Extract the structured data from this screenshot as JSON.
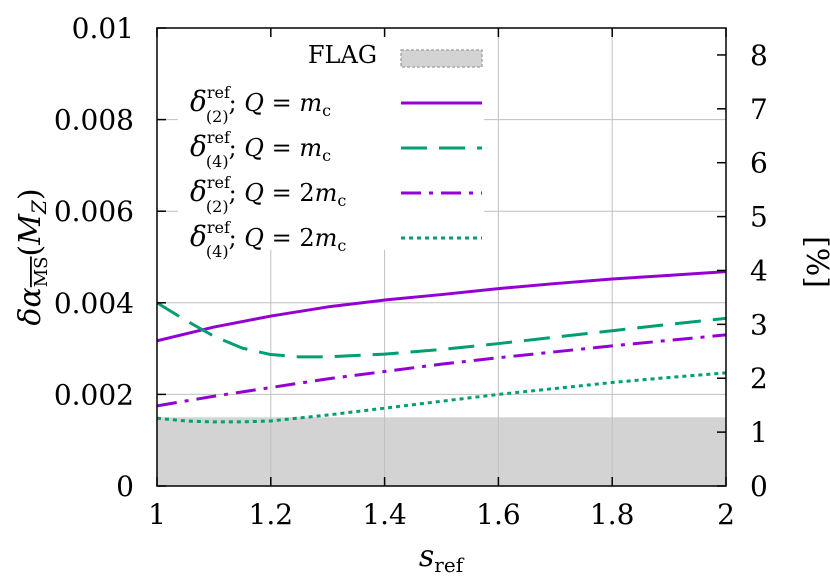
{
  "chart_data": {
    "type": "line",
    "xlabel": "s_ref",
    "ylabel": "δα_MS(M_Z)",
    "y2label": "[%]",
    "xlim": [
      1,
      2
    ],
    "ylim": [
      0,
      0.01
    ],
    "y2lim": [
      0,
      8.5
    ],
    "x_ticks": [
      "1",
      "1.2",
      "1.4",
      "1.6",
      "1.8",
      "2"
    ],
    "y_ticks": [
      "0",
      "0.002",
      "0.004",
      "0.006",
      "0.008",
      "0.01"
    ],
    "y2_ticks": [
      "0",
      "1",
      "2",
      "3",
      "4",
      "5",
      "6",
      "7",
      "8"
    ],
    "grid": true,
    "legend_position": "top-center",
    "flag_band": {
      "name": "FLAG",
      "ymin": 0,
      "ymax": 0.0015,
      "color": "#d3d3d3"
    },
    "series": [
      {
        "legend_text": "δ(2)ref; Q =   mc",
        "color": "#9400d3",
        "dash": "solid",
        "x": [
          1.0,
          1.1,
          1.2,
          1.3,
          1.4,
          1.5,
          1.6,
          1.7,
          1.8,
          1.9,
          2.0
        ],
        "values": [
          0.00317,
          0.00347,
          0.00371,
          0.00391,
          0.00406,
          0.00418,
          0.00431,
          0.00442,
          0.00452,
          0.0046,
          0.00468
        ]
      },
      {
        "legend_text": "δ(4)ref; Q =   mc",
        "color": "#009e73",
        "dash": "long-dash",
        "x": [
          1.0,
          1.05,
          1.1,
          1.15,
          1.2,
          1.25,
          1.3,
          1.4,
          1.5,
          1.6,
          1.7,
          1.8,
          1.9,
          2.0
        ],
        "values": [
          0.004,
          0.00362,
          0.00327,
          0.00301,
          0.00287,
          0.00282,
          0.00282,
          0.00288,
          0.00298,
          0.00311,
          0.00325,
          0.00339,
          0.00353,
          0.00366
        ]
      },
      {
        "legend_text": "δ(2)ref; Q = 2mc",
        "color": "#9400d3",
        "dash": "dash-dot",
        "x": [
          1.0,
          1.1,
          1.2,
          1.3,
          1.4,
          1.5,
          1.6,
          1.7,
          1.8,
          1.9,
          2.0
        ],
        "values": [
          0.00175,
          0.00196,
          0.00215,
          0.00234,
          0.0025,
          0.00266,
          0.0028,
          0.00293,
          0.00306,
          0.00318,
          0.0033
        ]
      },
      {
        "legend_text": "δ(4)ref; Q = 2mc",
        "color": "#009e73",
        "dash": "dotted",
        "x": [
          1.0,
          1.05,
          1.1,
          1.15,
          1.2,
          1.3,
          1.4,
          1.5,
          1.6,
          1.7,
          1.8,
          1.9,
          2.0
        ],
        "values": [
          0.00148,
          0.00142,
          0.0014,
          0.0014,
          0.00142,
          0.00155,
          0.0017,
          0.00185,
          0.002,
          0.00213,
          0.00226,
          0.00237,
          0.00247
        ]
      }
    ]
  }
}
